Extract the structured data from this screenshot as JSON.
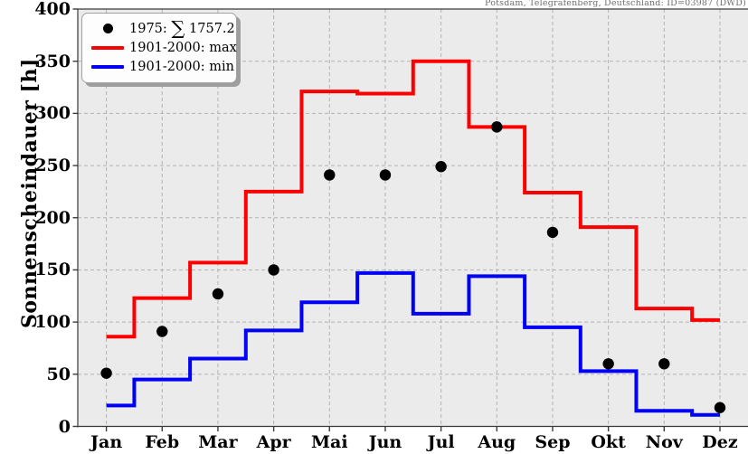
{
  "station_label": "Potsdam, Telegrafenberg, Deutschland: ID=03987 (DWD)",
  "legend": {
    "items": [
      {
        "marker": "dot",
        "color": "#000000",
        "label": "1975: ∑ 1757.2"
      },
      {
        "marker": "line",
        "color": "#fb0000",
        "label": "1901-2000: max"
      },
      {
        "marker": "line",
        "color": "#0000f5",
        "label": "1901-2000: min"
      }
    ]
  },
  "colors": {
    "plot_background": "#ebebeb",
    "grid": "#b3b3b3",
    "spine": "#3a3a3a",
    "max_line": "#fb0000",
    "min_line": "#0000f5",
    "dots": "#000000"
  },
  "chart_data": {
    "type": "line",
    "subtype": "step-mid with scatter overlay",
    "title": "",
    "station": "Potsdam, Telegrafenberg, Deutschland: ID=03987 (DWD)",
    "xlabel": "",
    "ylabel": "Sonnenscheindauer [h]",
    "categories": [
      "Jan",
      "Feb",
      "Mar",
      "Apr",
      "Mai",
      "Jun",
      "Jul",
      "Aug",
      "Sep",
      "Okt",
      "Nov",
      "Dez"
    ],
    "y_ticks": [
      0,
      50,
      100,
      150,
      200,
      250,
      300,
      350,
      400
    ],
    "ylim": [
      0,
      400
    ],
    "grid": "dashed, both axes",
    "legend_position": "upper left",
    "series": [
      {
        "name": "1975",
        "style": "scatter",
        "color": "#000000",
        "values": [
          51,
          91,
          127,
          150,
          241,
          241,
          249,
          287,
          186,
          60,
          60,
          18
        ],
        "annotation_sum": 1757.2
      },
      {
        "name": "1901-2000: max",
        "style": "step-mid",
        "color": "#fb0000",
        "values": [
          86,
          123,
          157,
          225,
          321,
          319,
          350,
          287,
          224,
          191,
          113,
          102
        ]
      },
      {
        "name": "1901-2000: min",
        "style": "step-mid",
        "color": "#0000f5",
        "values": [
          20,
          45,
          65,
          92,
          119,
          147,
          108,
          144,
          95,
          53,
          15,
          11
        ]
      }
    ]
  }
}
